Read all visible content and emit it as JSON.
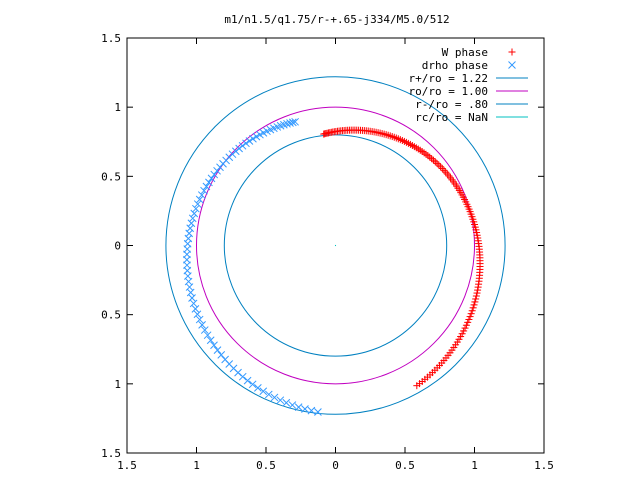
{
  "chart_data": {
    "type": "scatter",
    "title": "m1/n1.5/q1.75/r-+.65-j334/M5.0/512",
    "xlabel": "",
    "ylabel": "",
    "xlim": [
      -1.5,
      1.5
    ],
    "ylim": [
      -1.5,
      1.5
    ],
    "x_ticks": [
      "1.5",
      "1",
      "0.5",
      "0",
      "0.5",
      "1",
      "1.5"
    ],
    "y_ticks": [
      "1.5",
      "1",
      "0.5",
      "0",
      "0.5",
      "1",
      "1.5"
    ],
    "grid": false,
    "legend_position": "top-right",
    "series": [
      {
        "name": "W phase",
        "marker": "plus",
        "color": "#ff0000",
        "spiral": {
          "theta_start_deg": 96,
          "theta_end_deg": -60,
          "r_start": 0.81,
          "r_end": 1.17,
          "n_points": 150
        }
      },
      {
        "name": "drho phase",
        "marker": "x",
        "color": "#3399ff",
        "spiral": {
          "theta_start_deg": 108,
          "theta_end_deg": 264,
          "r_start": 0.94,
          "r_end": 1.21,
          "n_points": 80
        }
      },
      {
        "name": "r+/ro = 1.22",
        "type": "circle",
        "r": 1.22,
        "color": "#0080c0"
      },
      {
        "name": "ro/ro = 1.00",
        "type": "circle",
        "r": 1.0,
        "color": "#c000c0"
      },
      {
        "name": "r-/ro = .80",
        "type": "circle",
        "r": 0.8,
        "color": "#0080c0"
      },
      {
        "name": "rc/ro = NaN",
        "type": "circle",
        "r": null,
        "color": "#00c0c0"
      }
    ]
  }
}
